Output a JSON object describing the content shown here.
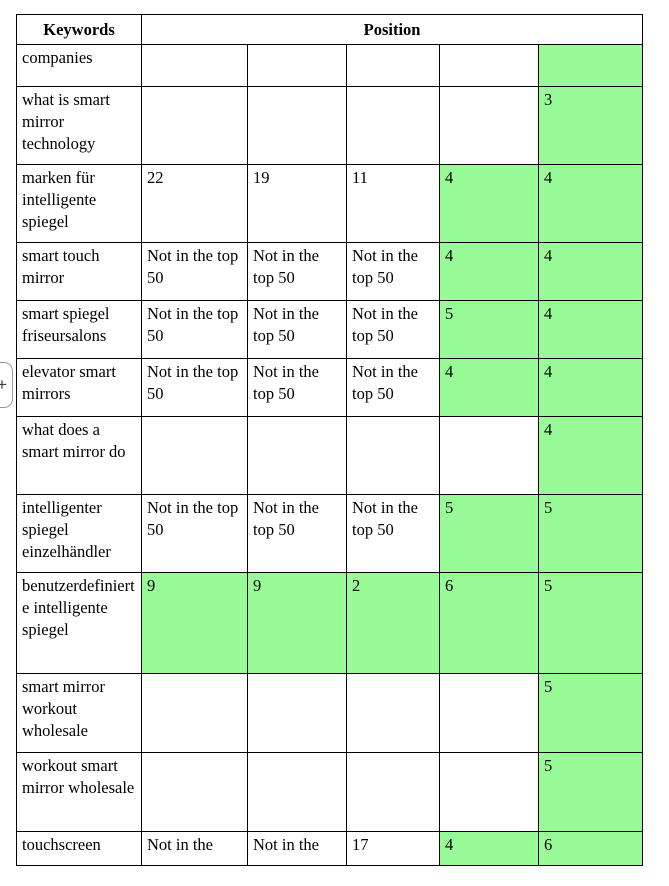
{
  "colors": {
    "highlight_green": "#98FB98",
    "table_border": "#000000"
  },
  "insert_control": {
    "plus_label": "+"
  },
  "table": {
    "header": {
      "keywords_label": "Keywords",
      "position_label": "Position"
    },
    "rows": [
      {
        "keyword": "companies",
        "positions": [
          {
            "text": "",
            "highlight": false
          },
          {
            "text": "",
            "highlight": false
          },
          {
            "text": "",
            "highlight": false
          },
          {
            "text": "",
            "highlight": false
          },
          {
            "text": "",
            "highlight": true
          }
        ]
      },
      {
        "keyword": "what is smart mirror technology",
        "positions": [
          {
            "text": "",
            "highlight": false
          },
          {
            "text": "",
            "highlight": false
          },
          {
            "text": "",
            "highlight": false
          },
          {
            "text": "",
            "highlight": false
          },
          {
            "text": "3",
            "highlight": true
          }
        ]
      },
      {
        "keyword": "marken für intelligente spiegel",
        "positions": [
          {
            "text": "22",
            "highlight": false
          },
          {
            "text": "19",
            "highlight": false
          },
          {
            "text": "11",
            "highlight": false
          },
          {
            "text": "4",
            "highlight": true
          },
          {
            "text": "4",
            "highlight": true
          }
        ]
      },
      {
        "keyword": "smart touch mirror",
        "positions": [
          {
            "text": "Not in the top 50",
            "highlight": false
          },
          {
            "text": "Not in the top 50",
            "highlight": false
          },
          {
            "text": "Not in the top 50",
            "highlight": false
          },
          {
            "text": "4",
            "highlight": true
          },
          {
            "text": "4",
            "highlight": true
          }
        ]
      },
      {
        "keyword": "smart spiegel friseursalons",
        "positions": [
          {
            "text": "Not in the top 50",
            "highlight": false
          },
          {
            "text": "Not in the top 50",
            "highlight": false
          },
          {
            "text": "Not in the top 50",
            "highlight": false
          },
          {
            "text": "5",
            "highlight": true
          },
          {
            "text": "4",
            "highlight": true
          }
        ]
      },
      {
        "keyword": "elevator smart mirrors",
        "positions": [
          {
            "text": "Not in the top 50",
            "highlight": false
          },
          {
            "text": "Not in the top 50",
            "highlight": false
          },
          {
            "text": "Not in the top 50",
            "highlight": false
          },
          {
            "text": "4",
            "highlight": true
          },
          {
            "text": "4",
            "highlight": true
          }
        ]
      },
      {
        "keyword": "what does a smart mirror do",
        "positions": [
          {
            "text": "",
            "highlight": false
          },
          {
            "text": "",
            "highlight": false
          },
          {
            "text": "",
            "highlight": false
          },
          {
            "text": "",
            "highlight": false
          },
          {
            "text": "4",
            "highlight": true
          }
        ]
      },
      {
        "keyword": "intelligenter spiegel einzelhändler",
        "positions": [
          {
            "text": "Not in the top 50",
            "highlight": false
          },
          {
            "text": "Not in the top 50",
            "highlight": false
          },
          {
            "text": "Not in the top 50",
            "highlight": false
          },
          {
            "text": "5",
            "highlight": true
          },
          {
            "text": "5",
            "highlight": true
          }
        ]
      },
      {
        "keyword": "benutzerdefinierte intelligente spiegel",
        "positions": [
          {
            "text": "9",
            "highlight": true
          },
          {
            "text": "9",
            "highlight": true
          },
          {
            "text": "2",
            "highlight": true
          },
          {
            "text": "6",
            "highlight": true
          },
          {
            "text": "5",
            "highlight": true
          }
        ]
      },
      {
        "keyword": "smart mirror workout wholesale",
        "positions": [
          {
            "text": "",
            "highlight": false
          },
          {
            "text": "",
            "highlight": false
          },
          {
            "text": "",
            "highlight": false
          },
          {
            "text": "",
            "highlight": false
          },
          {
            "text": "5",
            "highlight": true
          }
        ]
      },
      {
        "keyword": "workout smart mirror wholesale",
        "positions": [
          {
            "text": "",
            "highlight": false
          },
          {
            "text": "",
            "highlight": false
          },
          {
            "text": "",
            "highlight": false
          },
          {
            "text": "",
            "highlight": false
          },
          {
            "text": "5",
            "highlight": true
          }
        ]
      },
      {
        "keyword": "touchscreen",
        "positions": [
          {
            "text": "Not in the",
            "highlight": false
          },
          {
            "text": "Not in the",
            "highlight": false
          },
          {
            "text": "17",
            "highlight": false
          },
          {
            "text": "4",
            "highlight": true
          },
          {
            "text": "6",
            "highlight": true
          }
        ]
      }
    ]
  }
}
